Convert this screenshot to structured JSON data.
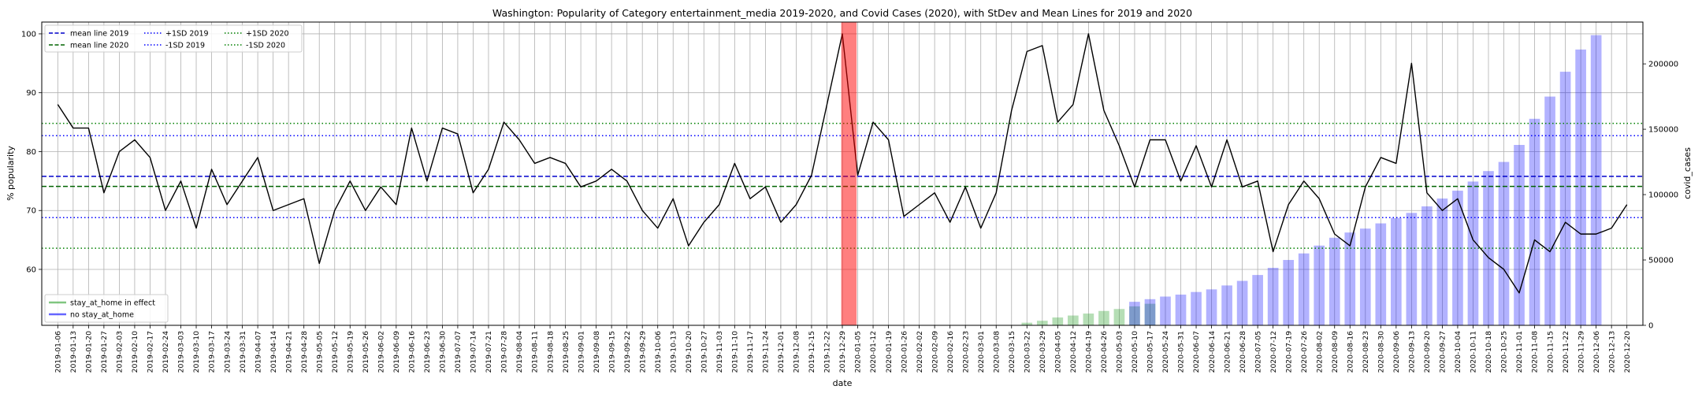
{
  "chart_data": {
    "type": "line",
    "title": "Washington: Popularity of Category entertainment_media 2019-2020, and Covid Cases (2020), with StDev and Mean Lines for 2019 and 2020",
    "xlabel": "date",
    "ylabel": "% popularity",
    "y2label": "covid_cases",
    "ylim": [
      50.5,
      102
    ],
    "y2lim": [
      0,
      232000
    ],
    "yticks": [
      60,
      70,
      80,
      90,
      100
    ],
    "y2ticks": [
      0,
      50000,
      100000,
      150000,
      200000
    ],
    "grid": true,
    "dates": [
      "2019-01-06",
      "2019-01-13",
      "2019-01-20",
      "2019-01-27",
      "2019-02-03",
      "2019-02-10",
      "2019-02-17",
      "2019-02-24",
      "2019-03-03",
      "2019-03-10",
      "2019-03-17",
      "2019-03-24",
      "2019-03-31",
      "2019-04-07",
      "2019-04-14",
      "2019-04-21",
      "2019-04-28",
      "2019-05-05",
      "2019-05-12",
      "2019-05-19",
      "2019-05-26",
      "2019-06-02",
      "2019-06-09",
      "2019-06-16",
      "2019-06-23",
      "2019-06-30",
      "2019-07-07",
      "2019-07-14",
      "2019-07-21",
      "2019-07-28",
      "2019-08-04",
      "2019-08-11",
      "2019-08-18",
      "2019-08-25",
      "2019-09-01",
      "2019-09-08",
      "2019-09-15",
      "2019-09-22",
      "2019-09-29",
      "2019-10-06",
      "2019-10-13",
      "2019-10-20",
      "2019-10-27",
      "2019-11-03",
      "2019-11-10",
      "2019-11-17",
      "2019-11-24",
      "2019-12-01",
      "2019-12-08",
      "2019-12-15",
      "2019-12-22",
      "2019-12-29",
      "2020-01-05",
      "2020-01-12",
      "2020-01-19",
      "2020-01-26",
      "2020-02-02",
      "2020-02-09",
      "2020-02-16",
      "2020-02-23",
      "2020-03-01",
      "2020-03-08",
      "2020-03-15",
      "2020-03-22",
      "2020-03-29",
      "2020-04-05",
      "2020-04-12",
      "2020-04-19",
      "2020-04-26",
      "2020-05-03",
      "2020-05-10",
      "2020-05-17",
      "2020-05-24",
      "2020-05-31",
      "2020-06-07",
      "2020-06-14",
      "2020-06-21",
      "2020-06-28",
      "2020-07-05",
      "2020-07-12",
      "2020-07-19",
      "2020-07-26",
      "2020-08-02",
      "2020-08-09",
      "2020-08-16",
      "2020-08-23",
      "2020-08-30",
      "2020-09-06",
      "2020-09-13",
      "2020-09-20",
      "2020-09-27",
      "2020-10-04",
      "2020-10-11",
      "2020-10-18",
      "2020-10-25",
      "2020-11-01",
      "2020-11-08",
      "2020-11-15",
      "2020-11-22",
      "2020-11-29",
      "2020-12-06",
      "2020-12-13",
      "2020-12-20"
    ],
    "tick_label_every": 1,
    "popularity": [
      88,
      84,
      84,
      73,
      80,
      82,
      79,
      70,
      75,
      67,
      77,
      71,
      75,
      79,
      70,
      71,
      72,
      61,
      70,
      75,
      70,
      74,
      71,
      84,
      75,
      84,
      83,
      73,
      77,
      85,
      82,
      78,
      79,
      78,
      74,
      75,
      77,
      75,
      70,
      67,
      72,
      64,
      68,
      71,
      78,
      72,
      74,
      68,
      71,
      76,
      88,
      100,
      76,
      85,
      82,
      69,
      71,
      73,
      68,
      74,
      67,
      73,
      87,
      97,
      98,
      85,
      88,
      100,
      87,
      81,
      74,
      82,
      82,
      75,
      81,
      74,
      82,
      74,
      75,
      63,
      71,
      75,
      72,
      66,
      64,
      74,
      79,
      78,
      95,
      73,
      70,
      72,
      65,
      62,
      60,
      56,
      65,
      63,
      68,
      66,
      66,
      67,
      71
    ],
    "covid_series": [
      {
        "name": "stay_at_home in effect",
        "color": "#2ca02c",
        "opacity": 0.35,
        "start": "2020-03-22",
        "values": [
          2000,
          3500,
          6000,
          7500,
          9000,
          11000,
          12500,
          14500,
          16500
        ]
      },
      {
        "name": "no stay_at_home",
        "color": "#0000ff",
        "opacity": 0.3,
        "start": "2020-03-15",
        "values": [
          300
        ]
      },
      {
        "name": "no stay_at_home",
        "color": "#0000ff",
        "opacity": 0.3,
        "start": "2020-05-10",
        "values": [
          18000,
          20000,
          22000,
          23500,
          25500,
          27500,
          30500,
          34000,
          38500,
          44000,
          50000,
          55000,
          61000,
          67000,
          71000,
          74000,
          78000,
          82000,
          86000,
          91000,
          97000,
          103000,
          110000,
          118000,
          125000,
          138000,
          158000,
          175000,
          194000,
          211000,
          222000
        ]
      }
    ],
    "reference_lines": [
      {
        "label": "mean line 2019",
        "value": 75.8,
        "color": "#0000cc",
        "style": "dashed"
      },
      {
        "label": "mean line 2020",
        "value": 74.1,
        "color": "#006400",
        "style": "dashed"
      },
      {
        "label": "+1SD 2019",
        "value": 82.7,
        "color": "#0000ff",
        "style": "dotted"
      },
      {
        "label": "-1SD 2019",
        "value": 68.8,
        "color": "#0000ff",
        "style": "dotted"
      },
      {
        "label": "+1SD 2020",
        "value": 84.8,
        "color": "#008000",
        "style": "dotted"
      },
      {
        "label": "-1SD 2020",
        "value": 63.6,
        "color": "#008000",
        "style": "dotted"
      }
    ],
    "highlight": {
      "date": "2020-01-01",
      "color": "#ff0000",
      "opacity": 0.5
    },
    "legend_top": [
      {
        "label": "mean line 2019",
        "color": "#0000cc",
        "style": "dashed"
      },
      {
        "label": "mean line 2020",
        "color": "#006400",
        "style": "dashed"
      },
      {
        "label": "+1SD 2019",
        "color": "#0000ff",
        "style": "dotted"
      },
      {
        "label": "-1SD 2019",
        "color": "#0000ff",
        "style": "dotted"
      },
      {
        "label": "+1SD 2020",
        "color": "#008000",
        "style": "dotted"
      },
      {
        "label": "-1SD 2020",
        "color": "#008000",
        "style": "dotted"
      }
    ],
    "legend_bottom": [
      {
        "label": "stay_at_home in effect",
        "color": "#2ca02c",
        "style": "solid"
      },
      {
        "label": "no stay_at_home",
        "color": "#0000ff",
        "style": "solid"
      }
    ],
    "legend_top_position": "upper-left",
    "legend_bottom_position": "lower-left"
  }
}
